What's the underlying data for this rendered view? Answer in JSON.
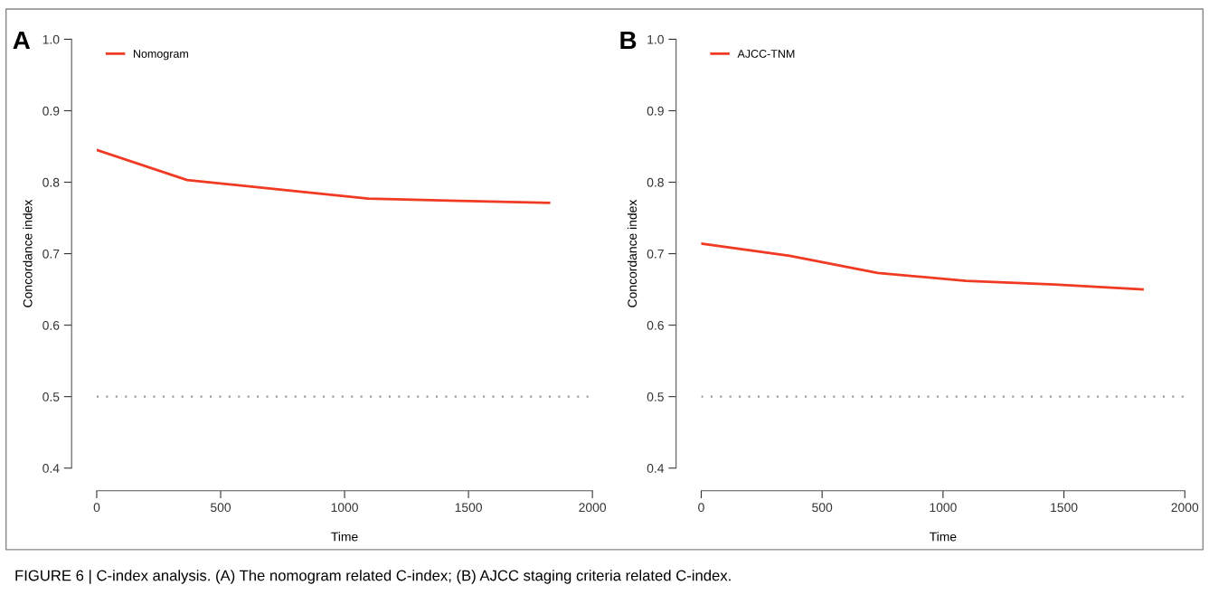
{
  "chart_data": [
    {
      "type": "line",
      "title": "A",
      "xlabel": "Time",
      "ylabel": "Concordance index",
      "x": [
        0,
        365,
        730,
        1095,
        1460,
        1825
      ],
      "series": [
        {
          "name": "Nomogram",
          "color": "#f03a24",
          "values": [
            0.845,
            0.803,
            0.79,
            0.777,
            0.774,
            0.771
          ]
        }
      ],
      "xlim": [
        0,
        2000
      ],
      "ylim": [
        0.4,
        1.0
      ],
      "xticks": [
        0,
        500,
        1000,
        1500,
        2000
      ],
      "yticks": [
        0.4,
        0.5,
        0.6,
        0.7,
        0.8,
        0.9,
        {
          "value": 1.0,
          "label": "1.0"
        }
      ],
      "ref_lines": [
        {
          "axis": "y",
          "value": 0.5,
          "color": "#999999",
          "line_style": "dotted"
        }
      ],
      "legend": "top left",
      "grid": false,
      "annotations": [
        "FIGURE 6 | C-index analysis. (A) The nomogram related C-index; (B) AJCC staging criteria related C-index."
      ]
    },
    {
      "type": "line",
      "title": "B",
      "xlabel": "Time",
      "ylabel": "Concordance index",
      "x": [
        0,
        365,
        730,
        1095,
        1460,
        1825
      ],
      "series": [
        {
          "name": "AJCC-TNM",
          "color": "#f03a24",
          "values": [
            0.714,
            0.697,
            0.673,
            0.662,
            0.657,
            0.65
          ]
        }
      ],
      "xlim": [
        0,
        2000
      ],
      "ylim": [
        0.4,
        1.0
      ],
      "xticks": [
        0,
        500,
        1000,
        1500,
        2000
      ],
      "yticks": [
        0.4,
        0.5,
        0.6,
        0.7,
        0.8,
        0.9,
        {
          "value": 1.0,
          "label": "1.0"
        }
      ],
      "ref_lines": [
        {
          "axis": "y",
          "value": 0.5,
          "color": "#999999",
          "line_style": "dotted"
        }
      ],
      "legend": "top left",
      "grid": false
    }
  ]
}
